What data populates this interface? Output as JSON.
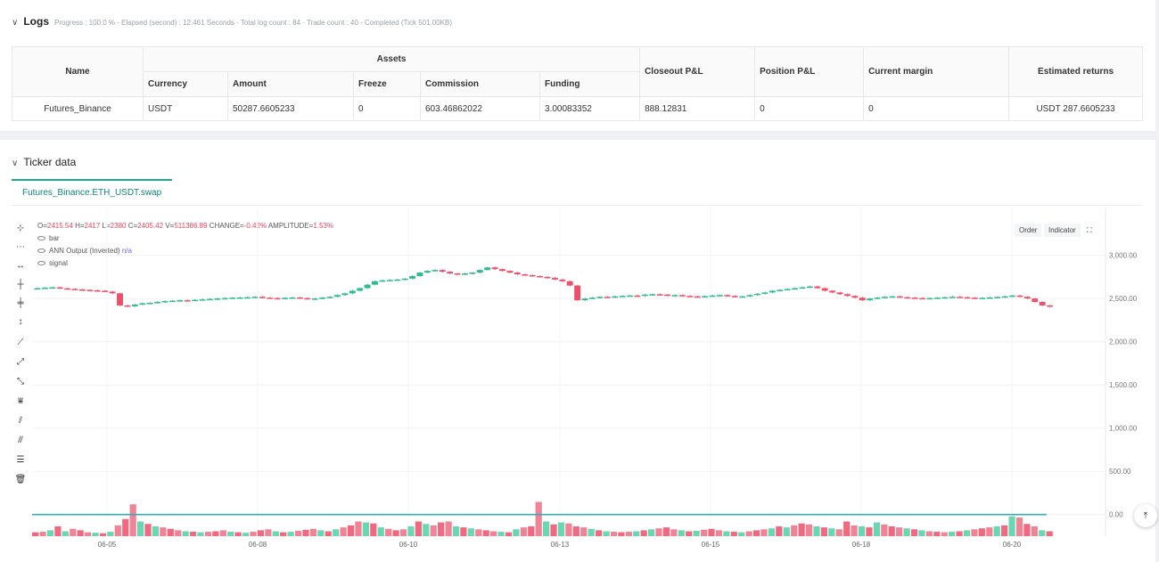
{
  "logs": {
    "title": "Logs",
    "subtitle": "Progress : 100.0 % - Elapsed (second) : 12.461  Seconds - Total log count : 84 - Trade count : 40 - Completed (Tick 501.00KB)",
    "headers": {
      "name": "Name",
      "assets": "Assets",
      "currency": "Currency",
      "amount": "Amount",
      "freeze": "Freeze",
      "commission": "Commission",
      "funding": "Funding",
      "closeout": "Closeout P&L",
      "position": "Position P&L",
      "margin": "Current margin",
      "returns": "Estimated returns"
    },
    "row": {
      "name": "Futures_Binance",
      "currency": "USDT",
      "amount": "50287.6605233",
      "freeze": "0",
      "commission": "603.46862022",
      "funding": "3.00083352",
      "closeout": "888.12831",
      "position": "0",
      "margin": "0",
      "returns": "USDT 287.6605233"
    }
  },
  "ticker": {
    "title": "Ticker data",
    "tab": "Futures_Binance.ETH_USDT.swap",
    "ohlc": {
      "o_label": "O=",
      "o": "2415.54",
      "h_label": "H=",
      "h": "2417",
      "l_label": "L=",
      "l": "2380",
      "c_label": "C=",
      "c": "2405.42",
      "v_label": "V=",
      "v": "511386.89",
      "change_label": "CHANGE=",
      "change": "-0.42%",
      "amp_label": "AMPLITUDE=",
      "amp": "1.53%"
    },
    "legend": {
      "bar": "bar",
      "ann": "ANN Output (Inverted)",
      "ann_value": "n/a",
      "signal": "signal"
    },
    "buttons": {
      "order": "Order",
      "indicator": "Indicator"
    }
  },
  "chart_data": {
    "type": "candlestick",
    "x_ticks": [
      "06-05",
      "06-08",
      "06-10",
      "06-13",
      "06-15",
      "06-18",
      "06-20"
    ],
    "y_ticks": [
      "3,000.00",
      "2,500.00",
      "2,000.00",
      "1,500.00",
      "1,000.00",
      "500.00",
      "0.00"
    ],
    "ylim": [
      -250,
      3450
    ],
    "close_series": [
      2620,
      2625,
      2630,
      2618,
      2612,
      2605,
      2600,
      2595,
      2590,
      2580,
      2560,
      2420,
      2410,
      2430,
      2445,
      2450,
      2460,
      2470,
      2475,
      2480,
      2478,
      2485,
      2490,
      2495,
      2500,
      2505,
      2510,
      2512,
      2515,
      2520,
      2510,
      2505,
      2500,
      2508,
      2512,
      2505,
      2495,
      2500,
      2510,
      2520,
      2540,
      2560,
      2590,
      2620,
      2660,
      2700,
      2710,
      2715,
      2720,
      2730,
      2760,
      2800,
      2820,
      2830,
      2810,
      2790,
      2780,
      2790,
      2800,
      2830,
      2860,
      2840,
      2820,
      2800,
      2780,
      2770,
      2760,
      2750,
      2740,
      2720,
      2700,
      2650,
      2480,
      2500,
      2510,
      2520,
      2515,
      2525,
      2530,
      2535,
      2530,
      2545,
      2550,
      2545,
      2535,
      2540,
      2530,
      2525,
      2520,
      2528,
      2535,
      2540,
      2530,
      2520,
      2525,
      2540,
      2555,
      2570,
      2590,
      2600,
      2610,
      2620,
      2630,
      2640,
      2620,
      2590,
      2570,
      2550,
      2530,
      2510,
      2480,
      2500,
      2510,
      2520,
      2525,
      2515,
      2510,
      2505,
      2500,
      2505,
      2510,
      2515,
      2520,
      2515,
      2510,
      2500,
      2508,
      2512,
      2518,
      2525,
      2535,
      2520,
      2500,
      2460,
      2420,
      2405
    ],
    "volume_series": [
      8,
      9,
      12,
      20,
      10,
      15,
      12,
      8,
      7,
      6,
      9,
      22,
      35,
      65,
      30,
      25,
      20,
      18,
      15,
      12,
      10,
      9,
      8,
      9,
      10,
      12,
      9,
      8,
      7,
      9,
      12,
      14,
      10,
      8,
      9,
      11,
      13,
      15,
      12,
      10,
      14,
      18,
      22,
      30,
      28,
      26,
      18,
      15,
      12,
      14,
      20,
      30,
      25,
      22,
      28,
      30,
      20,
      18,
      16,
      14,
      12,
      10,
      9,
      8,
      14,
      18,
      20,
      70,
      30,
      24,
      28,
      26,
      20,
      18,
      15,
      12,
      10,
      9,
      8,
      9,
      10,
      12,
      14,
      16,
      18,
      14,
      12,
      10,
      11,
      13,
      15,
      12,
      10,
      9,
      8,
      10,
      12,
      14,
      16,
      20,
      18,
      22,
      26,
      24,
      20,
      18,
      16,
      14,
      30,
      22,
      20,
      18,
      28,
      24,
      20,
      18,
      16,
      14,
      12,
      10,
      9,
      8,
      9,
      10,
      12,
      14,
      16,
      18,
      20,
      22,
      40,
      38,
      25,
      20,
      12,
      10
    ],
    "signal_level": 0
  }
}
